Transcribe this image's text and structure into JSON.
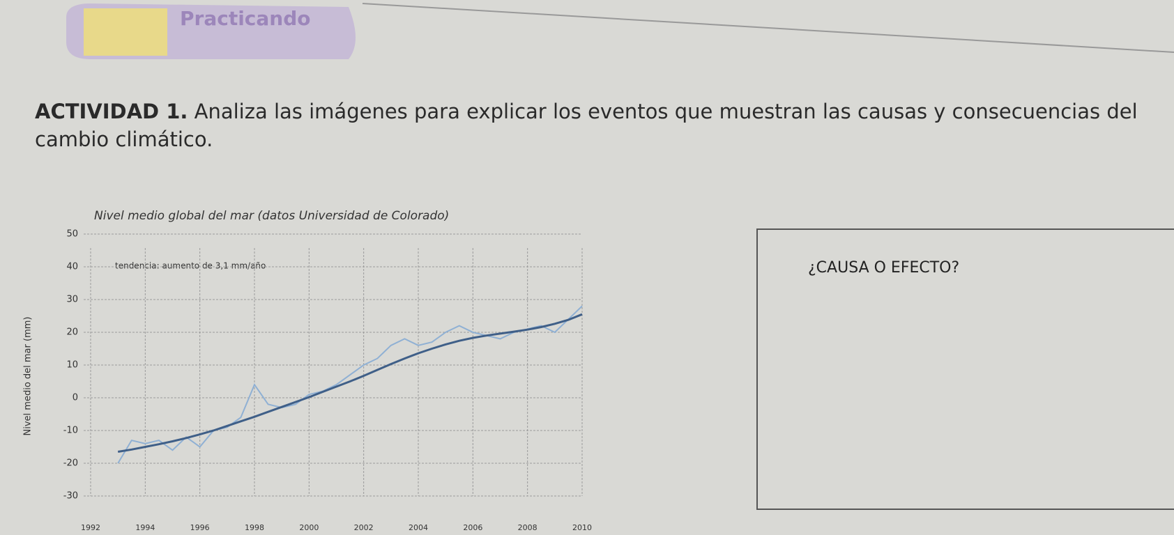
{
  "header": {
    "title": "Practicando"
  },
  "activity": {
    "label": "ACTIVIDAD 1.",
    "text": "Analiza las imágenes para explicar los eventos que muestran las causas y consecuencias del cambio climático."
  },
  "box": {
    "text": "¿CAUSA O EFECTO?"
  },
  "chart_data": {
    "type": "line",
    "title": "Nivel medio global del mar (datos Universidad de Colorado)",
    "y_label": "Nivel medio del mar (mm)",
    "annotation": "tendencia: aumento de 3,1 mm/año",
    "x": [
      1993.0,
      1993.5,
      1994.0,
      1994.5,
      1995.0,
      1995.5,
      1996.0,
      1996.5,
      1997.0,
      1997.5,
      1998.0,
      1998.5,
      1999.0,
      1999.5,
      2000.0,
      2000.5,
      2001.0,
      2001.5,
      2002.0,
      2002.5,
      2003.0,
      2003.5,
      2004.0,
      2004.5,
      2005.0,
      2005.5,
      2006.0,
      2006.5,
      2007.0,
      2007.5,
      2008.0,
      2008.5,
      2009.0,
      2009.5,
      2010.0
    ],
    "series": [
      {
        "color": "#8fb0d4",
        "values": [
          -20,
          -13,
          -14,
          -13,
          -16,
          -12,
          -15,
          -10,
          -9,
          -6,
          4,
          -2,
          -3,
          -2,
          1,
          2,
          4,
          7,
          10,
          12,
          16,
          18,
          16,
          17,
          20,
          22,
          20,
          19,
          18,
          20,
          21,
          22,
          20,
          24,
          28
        ]
      },
      {
        "color": "#3f5f88",
        "values": [
          -16.5,
          -15.8,
          -15,
          -14.2,
          -13.3,
          -12.3,
          -11.2,
          -10,
          -8.6,
          -7.2,
          -5.8,
          -4.3,
          -2.8,
          -1.3,
          0.2,
          1.8,
          3.4,
          5,
          6.7,
          8.5,
          10.3,
          12,
          13.6,
          15,
          16.3,
          17.4,
          18.3,
          19,
          19.6,
          20.2,
          20.8,
          21.6,
          22.6,
          23.8,
          25.5
        ]
      }
    ],
    "xlim": [
      1992,
      2010
    ],
    "xticks": [
      1992,
      1994,
      1996,
      1998,
      2000,
      2002,
      2004,
      2006,
      2008,
      2010
    ],
    "ylim": [
      -30,
      50
    ],
    "yticks": [
      -30,
      -20,
      -10,
      0,
      10,
      20,
      30,
      40,
      50
    ],
    "grid": true
  }
}
